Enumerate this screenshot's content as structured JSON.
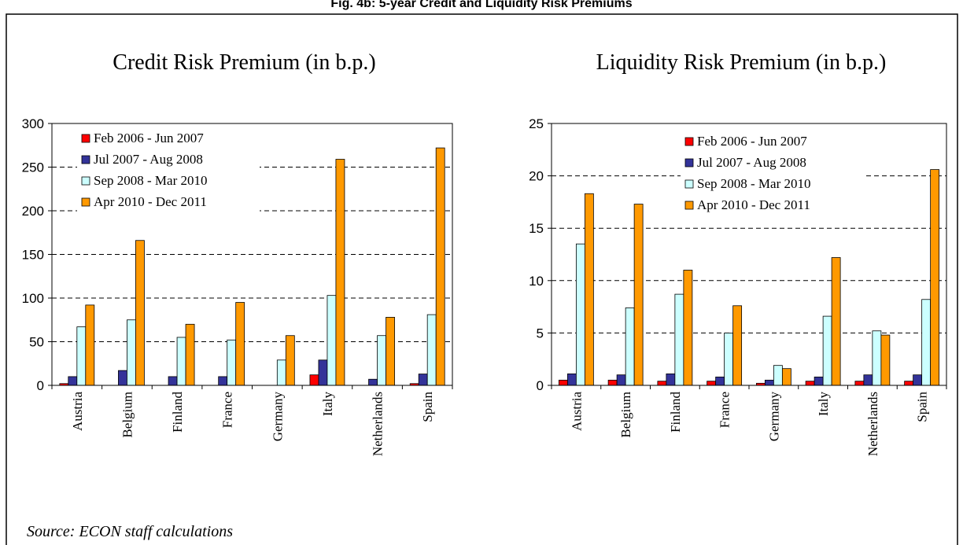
{
  "title": "Fig. 4b: 5-year Credit and Liquidity Risk Premiums",
  "source": "Source: ECON staff calculations",
  "chart_data": [
    {
      "type": "bar",
      "title": "Credit Risk Premium (in b.p.)",
      "categories": [
        "Austria",
        "Belgium",
        "Finland",
        "France",
        "Germany",
        "Italy",
        "Netherlands",
        "Spain"
      ],
      "series": [
        {
          "name": "Feb 2006 - Jun 2007",
          "color": "#ff0000",
          "values": [
            2,
            0,
            0,
            0,
            0,
            12,
            0,
            2
          ]
        },
        {
          "name": "Jul 2007 - Aug 2008",
          "color": "#333399",
          "values": [
            10,
            17,
            10,
            10,
            0,
            29,
            7,
            13
          ]
        },
        {
          "name": "Sep 2008 - Mar 2010",
          "color": "#ccffff",
          "values": [
            67,
            75,
            55,
            52,
            29,
            103,
            57,
            81
          ]
        },
        {
          "name": "Apr 2010 - Dec 2011",
          "color": "#ff9900",
          "values": [
            92,
            166,
            70,
            95,
            57,
            259,
            78,
            272
          ]
        }
      ],
      "ylim": [
        0,
        300
      ],
      "yticks": [
        0,
        50,
        100,
        150,
        200,
        250,
        300
      ],
      "grid": true,
      "legend": "upper left"
    },
    {
      "type": "bar",
      "title": "Liquidity Risk Premium (in b.p.)",
      "categories": [
        "Austria",
        "Belgium",
        "Finland",
        "France",
        "Germany",
        "Italy",
        "Netherlands",
        "Spain"
      ],
      "series": [
        {
          "name": "Feb 2006 - Jun 2007",
          "color": "#ff0000",
          "values": [
            0.5,
            0.5,
            0.4,
            0.4,
            0.2,
            0.4,
            0.4,
            0.4
          ]
        },
        {
          "name": "Jul 2007 - Aug 2008",
          "color": "#333399",
          "values": [
            1.1,
            1.0,
            1.1,
            0.8,
            0.5,
            0.8,
            1.0,
            1.0
          ]
        },
        {
          "name": "Sep 2008 - Mar 2010",
          "color": "#ccffff",
          "values": [
            13.5,
            7.4,
            8.7,
            5.0,
            1.9,
            6.6,
            5.2,
            8.2
          ]
        },
        {
          "name": "Apr 2010 - Dec 2011",
          "color": "#ff9900",
          "values": [
            18.3,
            17.3,
            11.0,
            7.6,
            1.6,
            12.2,
            4.8,
            20.6
          ]
        }
      ],
      "ylim": [
        0,
        25
      ],
      "yticks": [
        0,
        5,
        10,
        15,
        20,
        25
      ],
      "grid": true,
      "legend": "upper right"
    }
  ]
}
